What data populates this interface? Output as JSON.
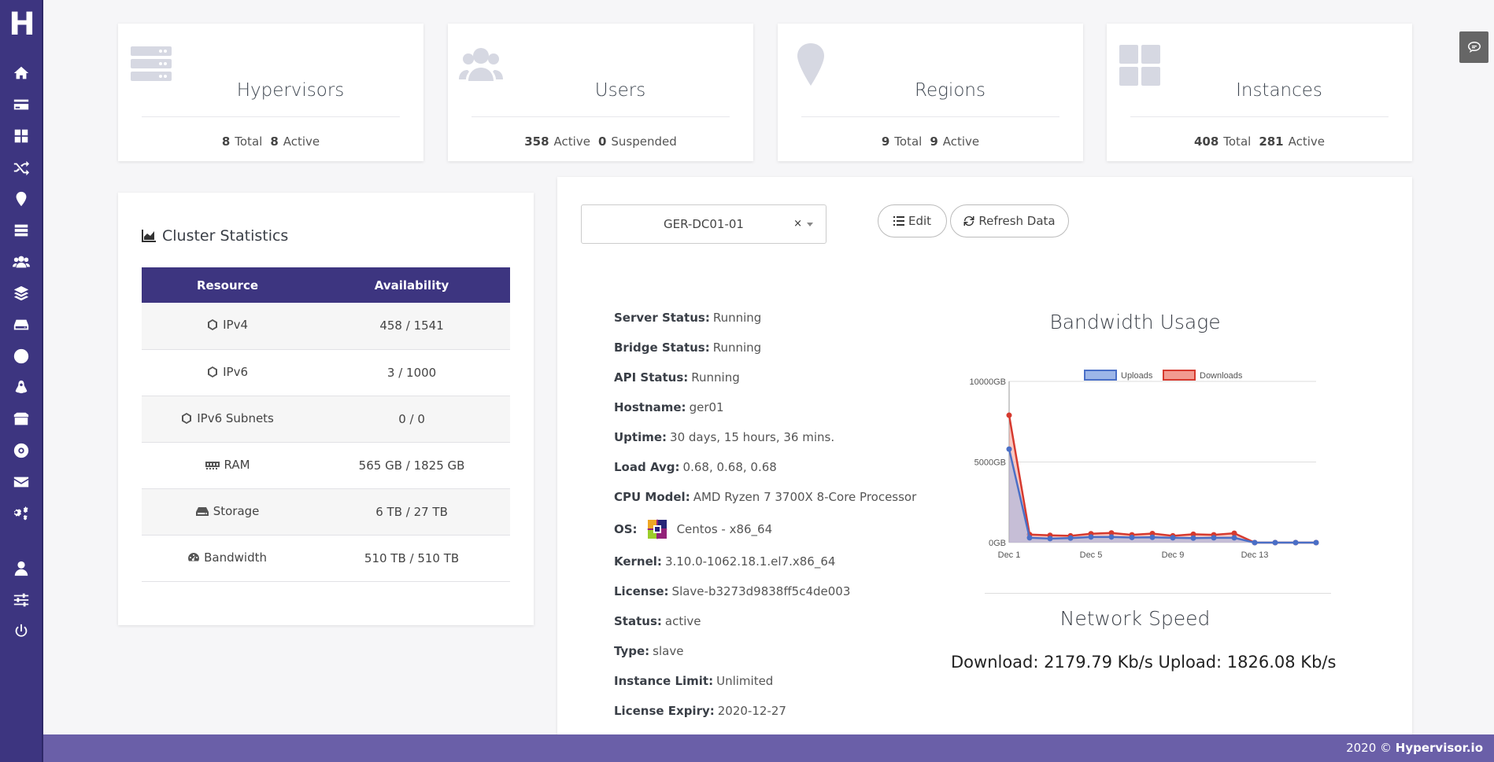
{
  "sidebar": {
    "logo": "H",
    "items": [
      {
        "name": "home-icon"
      },
      {
        "name": "billing-icon"
      },
      {
        "name": "dashboard-icon"
      },
      {
        "name": "shuffle-icon"
      },
      {
        "name": "location-icon"
      },
      {
        "name": "servers-icon"
      },
      {
        "name": "users-icon"
      },
      {
        "name": "layers-icon"
      },
      {
        "name": "storage-icon"
      },
      {
        "name": "globe-icon"
      },
      {
        "name": "linux-icon"
      },
      {
        "name": "box-icon"
      },
      {
        "name": "disc-icon"
      },
      {
        "name": "mail-icon"
      },
      {
        "name": "cogs-icon"
      },
      {
        "name": "user-icon"
      },
      {
        "name": "sliders-icon"
      },
      {
        "name": "power-icon"
      }
    ]
  },
  "stat_cards": {
    "hypervisors": {
      "title": "Hypervisors",
      "n1": "8",
      "l1": "Total",
      "n2": "8",
      "l2": "Active"
    },
    "users": {
      "title": "Users",
      "n1": "358",
      "l1": "Active",
      "n2": "0",
      "l2": "Suspended"
    },
    "regions": {
      "title": "Regions",
      "n1": "9",
      "l1": "Total",
      "n2": "9",
      "l2": "Active"
    },
    "instances": {
      "title": "Instances",
      "n1": "408",
      "l1": "Total",
      "n2": "281",
      "l2": "Active"
    }
  },
  "cluster": {
    "title": "Cluster Statistics",
    "headers": [
      "Resource",
      "Availability"
    ],
    "rows": [
      {
        "resource": "IPv4",
        "value": "458 / 1541"
      },
      {
        "resource": "IPv6",
        "value": "3 / 1000"
      },
      {
        "resource": "IPv6 Subnets",
        "value": "0 / 0"
      },
      {
        "resource": "RAM",
        "value": "565 GB / 1825 GB"
      },
      {
        "resource": "Storage",
        "value": "6 TB / 27 TB"
      },
      {
        "resource": "Bandwidth",
        "value": "510 TB / 510 TB"
      }
    ]
  },
  "server": {
    "selected": "GER-DC01-01",
    "clear": "×",
    "edit_label": "Edit",
    "refresh_label": "Refresh Data",
    "info": [
      {
        "k": "Server Status:",
        "v": "Running"
      },
      {
        "k": "Bridge Status:",
        "v": "Running"
      },
      {
        "k": "API Status:",
        "v": "Running"
      },
      {
        "k": "Hostname:",
        "v": "ger01"
      },
      {
        "k": "Uptime:",
        "v": "30 days, 15 hours, 36 mins."
      },
      {
        "k": "Load Avg:",
        "v": "0.68, 0.68, 0.68"
      },
      {
        "k": "CPU Model:",
        "v": "AMD Ryzen 7 3700X 8-Core Processor"
      },
      {
        "k": "OS:",
        "v": "Centos - x86_64"
      },
      {
        "k": "Kernel:",
        "v": "3.10.0-1062.18.1.el7.x86_64"
      },
      {
        "k": "License:",
        "v": "Slave-b3273d9838ff5c4de003"
      },
      {
        "k": "Status:",
        "v": "active"
      },
      {
        "k": "Type:",
        "v": "slave"
      },
      {
        "k": "Instance Limit:",
        "v": "Unlimited"
      },
      {
        "k": "License Expiry:",
        "v": "2020-12-27"
      }
    ],
    "network_title": "Network Speed",
    "network_speed": "Download: 2179.79 Kb/s Upload: 1826.08 Kb/s"
  },
  "chart_data": {
    "type": "area",
    "title": "Bandwidth Usage",
    "xlabel": "",
    "ylabel": "",
    "x": [
      "Dec 1",
      "Dec 2",
      "Dec 3",
      "Dec 4",
      "Dec 5",
      "Dec 6",
      "Dec 7",
      "Dec 8",
      "Dec 9",
      "Dec 10",
      "Dec 11",
      "Dec 12",
      "Dec 13",
      "Dec 14",
      "Dec 15",
      "Dec 16"
    ],
    "x_ticks": [
      "Dec 1",
      "Dec 5",
      "Dec 9",
      "Dec 13"
    ],
    "y_ticks": [
      "0GB",
      "5000GB",
      "10000GB"
    ],
    "ylim": [
      0,
      10000
    ],
    "grid": true,
    "legend_position": "top",
    "series": [
      {
        "name": "Uploads",
        "color": "#4a6fc7",
        "fill": "#9db6e8",
        "values": [
          5800,
          300,
          250,
          280,
          350,
          350,
          320,
          330,
          300,
          280,
          300,
          300,
          0,
          0,
          0,
          0
        ]
      },
      {
        "name": "Downloads",
        "color": "#d63a2f",
        "fill": "#f29a90",
        "values": [
          7900,
          500,
          450,
          420,
          550,
          600,
          480,
          560,
          420,
          520,
          480,
          580,
          0,
          0,
          0,
          0
        ]
      }
    ]
  },
  "footer": {
    "copyright": "2020 ©",
    "brand": "Hypervisor.io"
  }
}
